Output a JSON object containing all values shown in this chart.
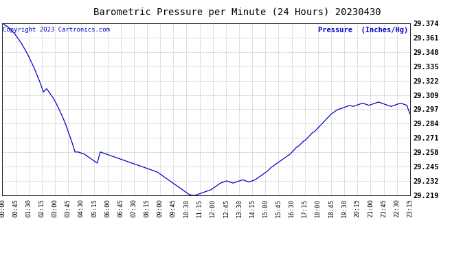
{
  "title": "Barometric Pressure per Minute (24 Hours) 20230430",
  "ylabel": "Pressure  (Inches/Hg)",
  "copyright_text": "Copyright 2023 Cartronics.com",
  "line_color": "#0000CC",
  "background_color": "#ffffff",
  "grid_color": "#b0b0b0",
  "ylabel_color": "#0000CC",
  "copyright_color": "#0000CC",
  "ylim": [
    29.219,
    29.374
  ],
  "yticks": [
    29.219,
    29.232,
    29.245,
    29.258,
    29.271,
    29.284,
    29.297,
    29.309,
    29.322,
    29.335,
    29.348,
    29.361,
    29.374
  ],
  "xtick_labels": [
    "00:00",
    "00:45",
    "01:30",
    "02:15",
    "03:00",
    "03:45",
    "04:30",
    "05:15",
    "06:00",
    "06:45",
    "07:30",
    "08:15",
    "09:00",
    "09:45",
    "10:30",
    "11:15",
    "12:00",
    "12:45",
    "13:30",
    "14:15",
    "15:00",
    "15:45",
    "16:30",
    "17:15",
    "18:00",
    "18:45",
    "19:30",
    "20:15",
    "21:00",
    "21:45",
    "22:30",
    "23:15"
  ],
  "pressure_data": [
    29.374,
    29.372,
    29.37,
    29.367,
    29.364,
    29.36,
    29.356,
    29.351,
    29.346,
    29.34,
    29.334,
    29.327,
    29.32,
    29.312,
    29.315,
    29.311,
    29.307,
    29.302,
    29.296,
    29.29,
    29.283,
    29.275,
    29.267,
    29.258,
    29.258,
    29.257,
    29.256,
    29.254,
    29.252,
    29.25,
    29.248,
    29.258,
    29.257,
    29.256,
    29.255,
    29.254,
    29.253,
    29.252,
    29.251,
    29.25,
    29.249,
    29.248,
    29.247,
    29.246,
    29.245,
    29.244,
    29.243,
    29.242,
    29.241,
    29.24,
    29.238,
    29.236,
    29.234,
    29.232,
    29.23,
    29.228,
    29.226,
    29.224,
    29.222,
    29.22,
    29.219,
    29.219,
    29.22,
    29.221,
    29.222,
    29.223,
    29.224,
    29.226,
    29.228,
    29.23,
    29.231,
    29.232,
    29.231,
    29.23,
    29.231,
    29.232,
    29.233,
    29.232,
    29.231,
    29.232,
    29.233,
    29.235,
    29.237,
    29.239,
    29.241,
    29.244,
    29.246,
    29.248,
    29.25,
    29.252,
    29.254,
    29.256,
    29.259,
    29.262,
    29.264,
    29.267,
    29.269,
    29.272,
    29.275,
    29.277,
    29.28,
    29.283,
    29.286,
    29.289,
    29.292,
    29.294,
    29.296,
    29.297,
    29.298,
    29.299,
    29.3,
    29.299,
    29.3,
    29.301,
    29.302,
    29.301,
    29.3,
    29.301,
    29.302,
    29.303,
    29.302,
    29.301,
    29.3,
    29.299,
    29.3,
    29.301,
    29.302,
    29.301,
    29.3,
    29.292
  ]
}
